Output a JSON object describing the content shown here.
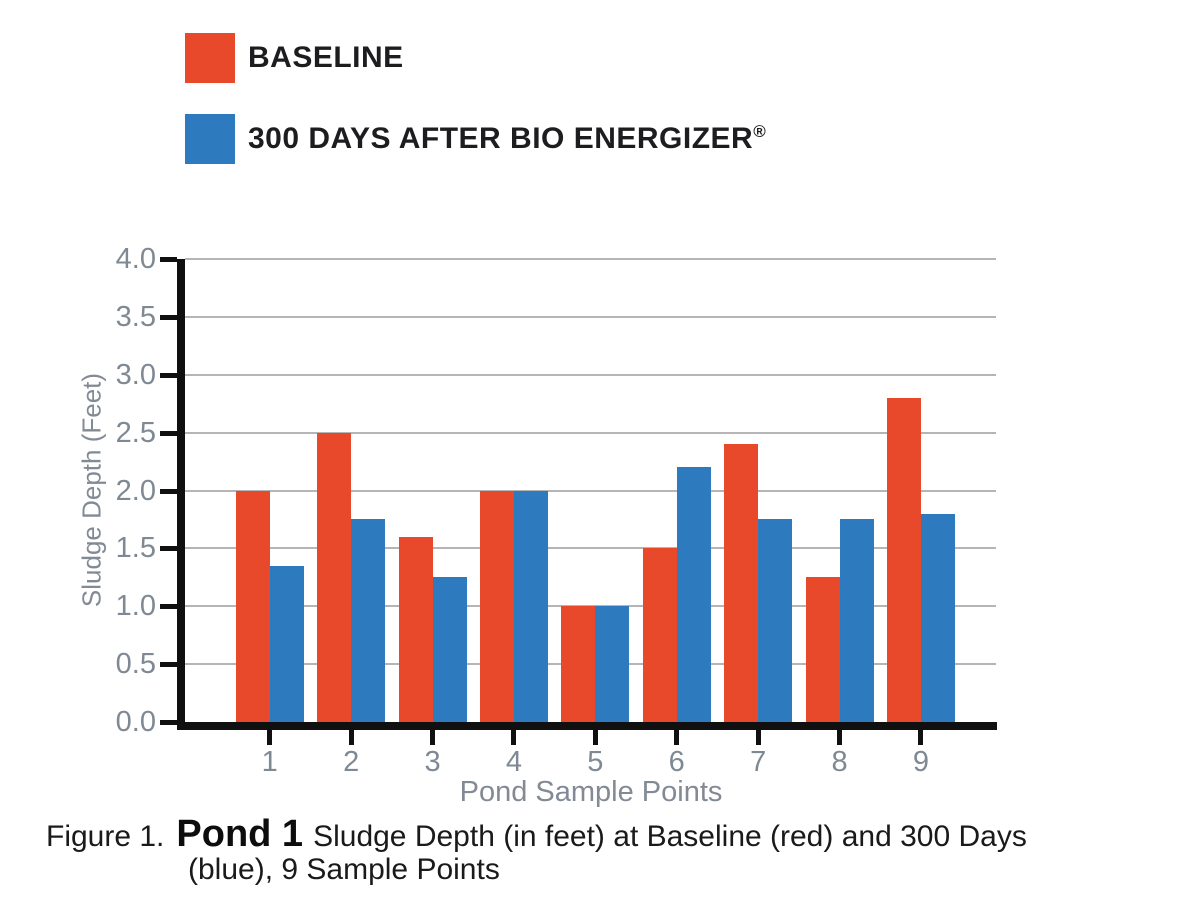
{
  "legend": {
    "items": [
      {
        "label": "BASELINE",
        "registered_mark": "",
        "color": "#E8492B"
      },
      {
        "label": "300 DAYS AFTER BIO ENERGIZER",
        "registered_mark": "®",
        "color": "#2E7ABF"
      }
    ]
  },
  "chart_data": {
    "type": "bar",
    "categories": [
      "1",
      "2",
      "3",
      "4",
      "5",
      "6",
      "7",
      "8",
      "9"
    ],
    "series": [
      {
        "name": "BASELINE",
        "color": "#E8492B",
        "values": [
          2.0,
          2.5,
          1.6,
          2.0,
          1.0,
          1.5,
          2.4,
          1.25,
          2.8
        ]
      },
      {
        "name": "300 DAYS AFTER BIO ENERGIZER®",
        "color": "#2E7ABF",
        "values": [
          1.35,
          1.75,
          1.25,
          2.0,
          1.0,
          2.2,
          1.75,
          1.75,
          1.8
        ]
      }
    ],
    "xlabel": "Pond Sample Points",
    "ylabel": "Sludge Depth (Feet)",
    "ylim": [
      0,
      4
    ],
    "ytick_step": 0.5,
    "yticks": [
      "4.0",
      "3.5",
      "3.0",
      "2.5",
      "2.0",
      "1.5",
      "1.0",
      "0.5",
      "0.0"
    ],
    "grid": true,
    "legend_position": "top-left",
    "colors": {
      "axis": "#101010",
      "gridline": "#b5b5b5",
      "tick_label": "#7f8994"
    }
  },
  "caption": {
    "prefix": "Figure 1.",
    "pond_title": "Pond 1",
    "line1_rest": "Sludge Depth (in feet) at Baseline (red) and 300 Days",
    "line2": "(blue), 9 Sample Points"
  }
}
